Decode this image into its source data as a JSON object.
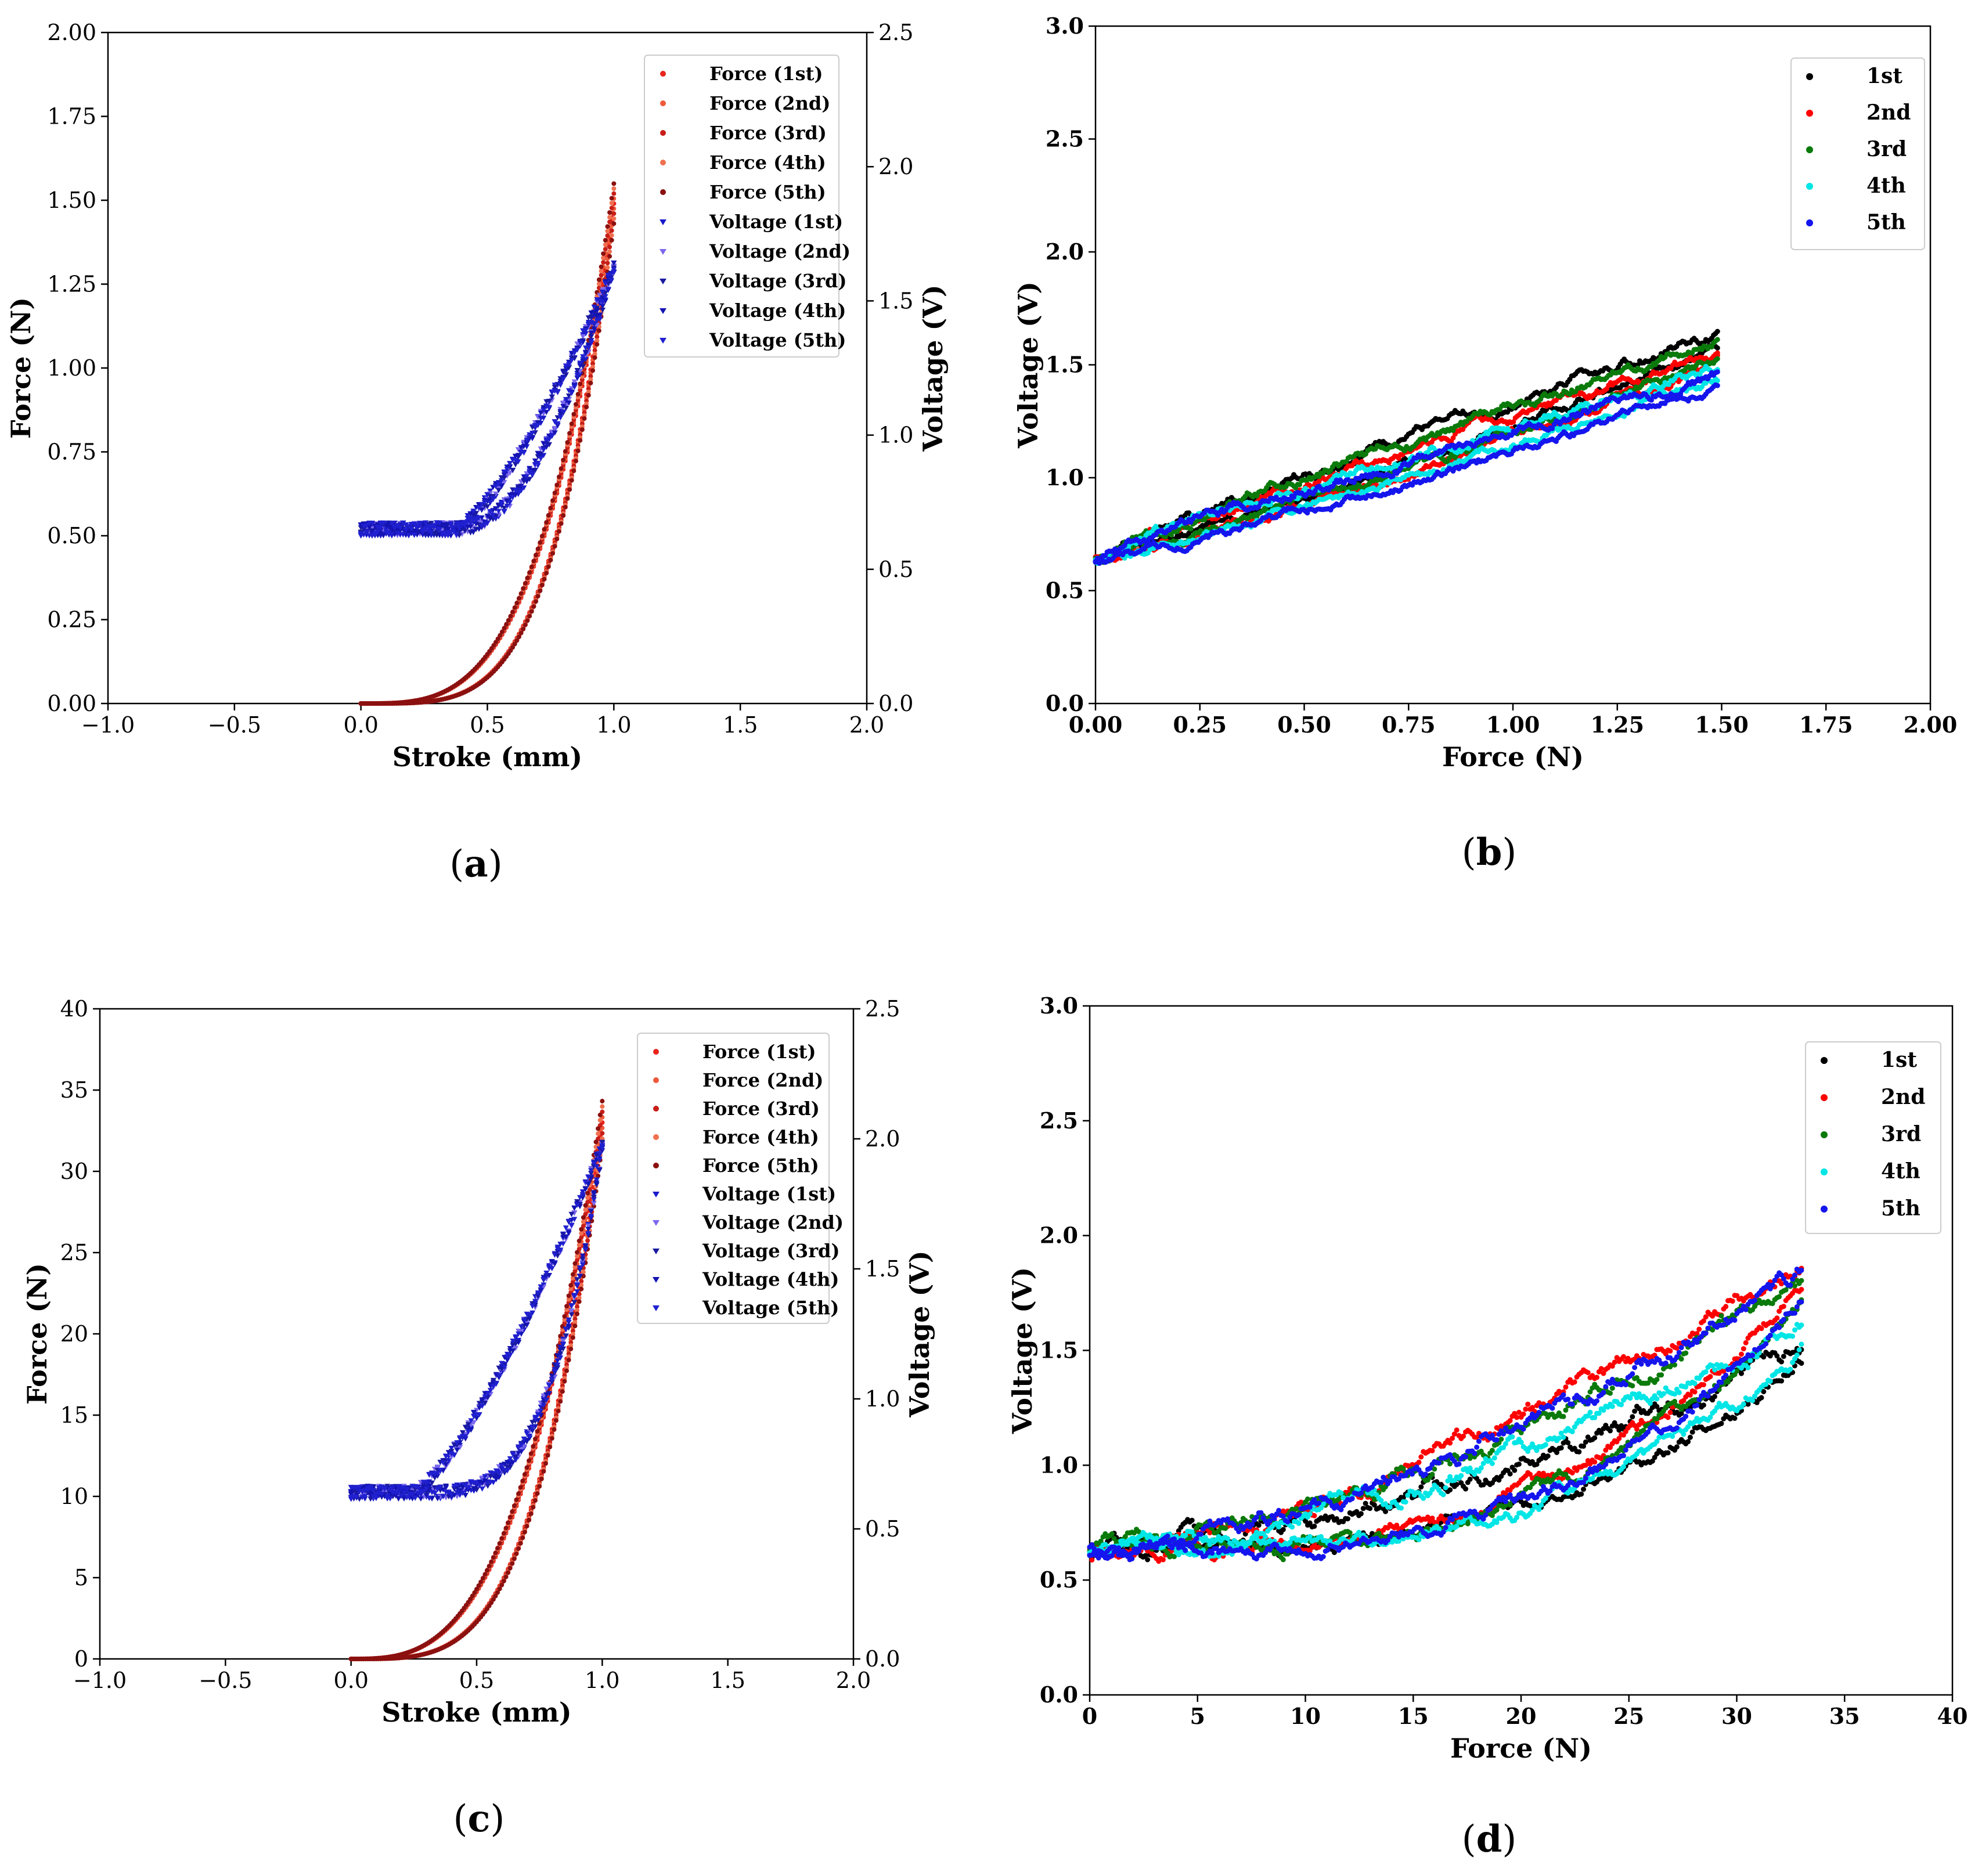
{
  "chart_data": [
    {
      "panel": "a",
      "type": "scatter",
      "label_open": "(",
      "label_letter": "a",
      "label_close": ")",
      "xlabel": "Stroke (mm)",
      "ylabel": "Force (N)",
      "y2label": "Voltage (V)",
      "xlim": [
        -1.0,
        2.0
      ],
      "ylim": [
        0,
        2.0
      ],
      "y2lim": [
        0,
        2.5
      ],
      "xticks": [
        "−1.0",
        "−0.5",
        "0.0",
        "0.5",
        "1.0",
        "1.5",
        "2.0"
      ],
      "yticks": [
        "0.00",
        "0.25",
        "0.50",
        "0.75",
        "1.00",
        "1.25",
        "1.50",
        "1.75",
        "2.00"
      ],
      "y2ticks": [
        "0.0",
        "0.5",
        "1.0",
        "1.5",
        "2.0",
        "2.5"
      ],
      "legend_position": "top-right",
      "force_peak": 1.49,
      "voltage_base": 0.65,
      "voltage_peak": 1.62,
      "series": [
        {
          "name": "Force (1st)",
          "color": "#e8241c",
          "marker": "circle"
        },
        {
          "name": "Force (2nd)",
          "color": "#f05a3a",
          "marker": "circle"
        },
        {
          "name": "Force (3rd)",
          "color": "#c81e18",
          "marker": "circle"
        },
        {
          "name": "Force (4th)",
          "color": "#f07050",
          "marker": "circle"
        },
        {
          "name": "Force (5th)",
          "color": "#8b1010",
          "marker": "circle"
        },
        {
          "name": "Voltage (1st)",
          "color": "#1a1acc",
          "marker": "triangle"
        },
        {
          "name": "Voltage (2nd)",
          "color": "#7b68ee",
          "marker": "triangle"
        },
        {
          "name": "Voltage (3rd)",
          "color": "#1a1aa0",
          "marker": "triangle"
        },
        {
          "name": "Voltage (4th)",
          "color": "#1414b4",
          "marker": "triangle"
        },
        {
          "name": "Voltage (5th)",
          "color": "#2020d0",
          "marker": "triangle"
        }
      ]
    },
    {
      "panel": "b",
      "type": "scatter",
      "label_open": "(",
      "label_letter": "b",
      "label_close": ")",
      "xlabel": "Force (N)",
      "ylabel": "Voltage (V)",
      "xlim": [
        0,
        2.0
      ],
      "ylim": [
        0,
        3.0
      ],
      "xticks": [
        "0.00",
        "0.25",
        "0.50",
        "0.75",
        "1.00",
        "1.25",
        "1.50",
        "1.75",
        "2.00"
      ],
      "yticks": [
        "0.0",
        "0.5",
        "1.0",
        "1.5",
        "2.0",
        "2.5",
        "3.0"
      ],
      "legend_position": "top-right",
      "x_max": 1.49,
      "v_start": 0.64,
      "series": [
        {
          "name": "1st",
          "color": "#000000",
          "v_end_upper": 1.64,
          "v_end_lower": 1.58
        },
        {
          "name": "2nd",
          "color": "#ff0000",
          "v_end_upper": 1.55,
          "v_end_lower": 1.5
        },
        {
          "name": "3rd",
          "color": "#0a7a0a",
          "v_end_upper": 1.6,
          "v_end_lower": 1.52
        },
        {
          "name": "4th",
          "color": "#00e5e5",
          "v_end_upper": 1.48,
          "v_end_lower": 1.44
        },
        {
          "name": "5th",
          "color": "#1515ee",
          "v_end_upper": 1.45,
          "v_end_lower": 1.4
        }
      ]
    },
    {
      "panel": "c",
      "type": "scatter",
      "label_open": "(",
      "label_letter": "c",
      "label_close": ")",
      "xlabel": "Stroke (mm)",
      "ylabel": "Force (N)",
      "y2label": "Voltage (V)",
      "xlim": [
        -1.0,
        2.0
      ],
      "ylim": [
        0,
        40
      ],
      "y2lim": [
        0,
        2.5
      ],
      "xticks": [
        "−1.0",
        "−0.5",
        "0.0",
        "0.5",
        "1.0",
        "1.5",
        "2.0"
      ],
      "yticks": [
        "0",
        "5",
        "10",
        "15",
        "20",
        "25",
        "30",
        "35",
        "40"
      ],
      "y2ticks": [
        "0.0",
        "0.5",
        "1.0",
        "1.5",
        "2.0",
        "2.5"
      ],
      "legend_position": "top-right",
      "force_peak": 33,
      "voltage_base": 0.64,
      "voltage_peak": 1.97,
      "series": [
        {
          "name": "Force (1st)",
          "color": "#e8241c",
          "marker": "circle"
        },
        {
          "name": "Force (2nd)",
          "color": "#f05a3a",
          "marker": "circle"
        },
        {
          "name": "Force (3rd)",
          "color": "#c81e18",
          "marker": "circle"
        },
        {
          "name": "Force (4th)",
          "color": "#f07050",
          "marker": "circle"
        },
        {
          "name": "Force (5th)",
          "color": "#8b1010",
          "marker": "circle"
        },
        {
          "name": "Voltage (1st)",
          "color": "#1a1acc",
          "marker": "triangle"
        },
        {
          "name": "Voltage (2nd)",
          "color": "#7b68ee",
          "marker": "triangle"
        },
        {
          "name": "Voltage (3rd)",
          "color": "#1a1aa0",
          "marker": "triangle"
        },
        {
          "name": "Voltage (4th)",
          "color": "#1414b4",
          "marker": "triangle"
        },
        {
          "name": "Voltage (5th)",
          "color": "#2020d0",
          "marker": "triangle"
        }
      ]
    },
    {
      "panel": "d",
      "type": "scatter",
      "label_open": "(",
      "label_letter": "d",
      "label_close": ")",
      "xlabel": "Force (N)",
      "ylabel": "Voltage (V)",
      "xlim": [
        0,
        40
      ],
      "ylim": [
        0,
        3.0
      ],
      "xticks": [
        "0",
        "5",
        "10",
        "15",
        "20",
        "25",
        "30",
        "35",
        "40"
      ],
      "yticks": [
        "0.0",
        "0.5",
        "1.0",
        "1.5",
        "2.0",
        "2.5",
        "3.0"
      ],
      "legend_position": "top-right",
      "x_max": 33,
      "v_start": 0.63,
      "series": [
        {
          "name": "1st",
          "color": "#000000",
          "v_end_upper": 1.5,
          "v_end_lower": 1.48
        },
        {
          "name": "2nd",
          "color": "#ff0000",
          "v_end_upper": 1.9,
          "v_end_lower": 1.8
        },
        {
          "name": "3rd",
          "color": "#0a7a0a",
          "v_end_upper": 1.8,
          "v_end_lower": 1.7
        },
        {
          "name": "4th",
          "color": "#00e5e5",
          "v_end_upper": 1.6,
          "v_end_lower": 1.5
        },
        {
          "name": "5th",
          "color": "#1515ee",
          "v_end_upper": 1.82,
          "v_end_lower": 1.7
        }
      ]
    }
  ]
}
